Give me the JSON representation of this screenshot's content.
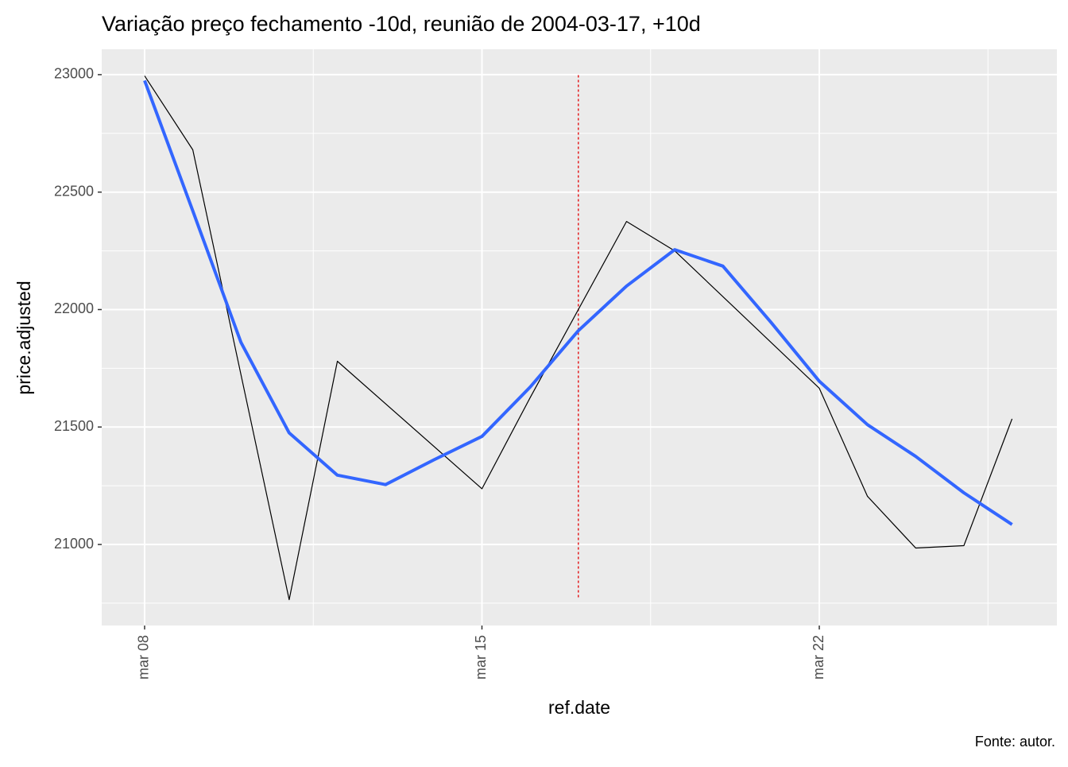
{
  "chart_data": {
    "type": "line",
    "title": "Variação preço fechamento -10d, reunião de 2004-03-17, +10d",
    "x_label": "ref.date",
    "y_label": "price.adjusted",
    "caption": "Fonte: autor.",
    "xlim": [
      7.11,
      26.93
    ],
    "ylim": [
      20655,
      23108
    ],
    "xticks": [
      {
        "value": 8,
        "label": "mar 08"
      },
      {
        "value": 15,
        "label": "mar 15"
      },
      {
        "value": 22,
        "label": "mar 22"
      }
    ],
    "yticks": [
      21000,
      21500,
      22000,
      22500,
      23000
    ],
    "minor_xticks": [
      11.5,
      18.5,
      25.5
    ],
    "minor_yticks": [
      20750,
      21250,
      21750,
      22250,
      22750
    ],
    "grid": true,
    "vline": {
      "x": 17,
      "y": [
        20775,
        23000
      ],
      "color": "#e41a1c"
    },
    "series": [
      {
        "color": "#000000",
        "width": 1.2,
        "x": [
          8,
          9,
          11,
          12,
          15,
          16,
          18,
          19,
          22,
          23,
          24,
          25,
          26
        ],
        "values": [
          22995,
          22680,
          20765,
          21780,
          21237,
          21625,
          22375,
          22250,
          21665,
          21205,
          20985,
          20995,
          21535
        ]
      },
      {
        "color": "#3366ff",
        "width": 4,
        "x": [
          8,
          9,
          10,
          11,
          12,
          13,
          14,
          15,
          16,
          17,
          18,
          19,
          20,
          21,
          22,
          23,
          24,
          25,
          26
        ],
        "values": [
          22975,
          22420,
          21860,
          21475,
          21295,
          21255,
          21360,
          21460,
          21670,
          21910,
          22100,
          22255,
          22185,
          21945,
          21695,
          21510,
          21375,
          21220,
          21085
        ]
      }
    ]
  }
}
